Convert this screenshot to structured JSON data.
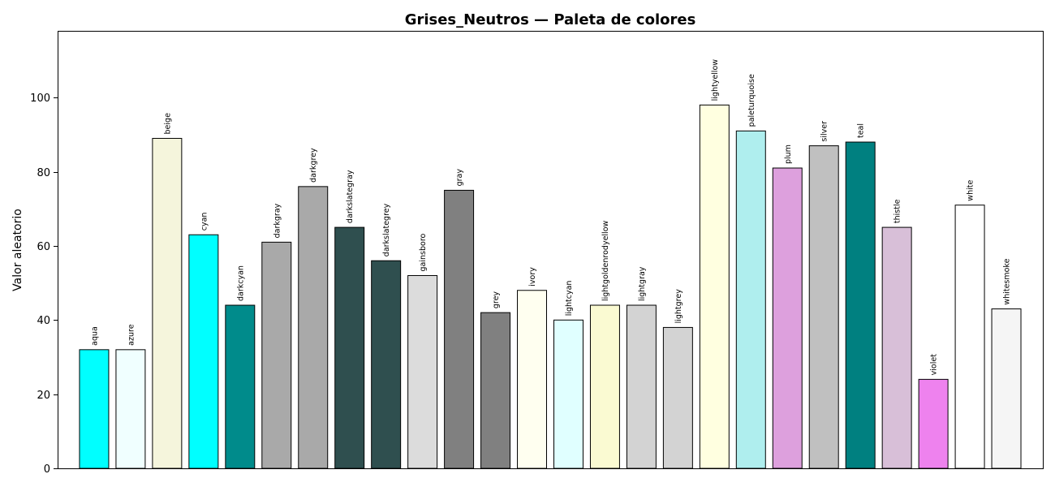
{
  "chart_data": {
    "type": "bar",
    "title": "Grises_Neutros — Paleta de colores",
    "xlabel": "",
    "ylabel": "Valor aleatorio",
    "ylim": [
      0,
      118
    ],
    "yticks": [
      0,
      20,
      40,
      60,
      80,
      100
    ],
    "grid": false,
    "categories": [
      "aqua",
      "azure",
      "beige",
      "cyan",
      "darkcyan",
      "darkgray",
      "darkgrey",
      "darkslategray",
      "darkslategrey",
      "gainsboro",
      "gray",
      "grey",
      "ivory",
      "lightcyan",
      "lightgoldenrodyellow",
      "lightgray",
      "lightgrey",
      "lightyellow",
      "paleturquoise",
      "plum",
      "silver",
      "teal",
      "thistle",
      "violet",
      "white",
      "whitesmoke"
    ],
    "values": [
      32,
      32,
      89,
      63,
      44,
      61,
      76,
      65,
      56,
      52,
      75,
      42,
      48,
      40,
      44,
      44,
      38,
      98,
      91,
      81,
      87,
      88,
      65,
      24,
      71,
      43
    ],
    "colors": [
      "#00ffff",
      "#f0ffff",
      "#f5f5dc",
      "#00ffff",
      "#008b8b",
      "#a9a9a9",
      "#a9a9a9",
      "#2f4f4f",
      "#2f4f4f",
      "#dcdcdc",
      "#808080",
      "#808080",
      "#fffff0",
      "#e0ffff",
      "#fafad2",
      "#d3d3d3",
      "#d3d3d3",
      "#ffffe0",
      "#afeeee",
      "#dda0dd",
      "#c0c0c0",
      "#008080",
      "#d8bfd8",
      "#ee82ee",
      "#ffffff",
      "#f5f5f5"
    ],
    "edge_color": "#000000"
  }
}
